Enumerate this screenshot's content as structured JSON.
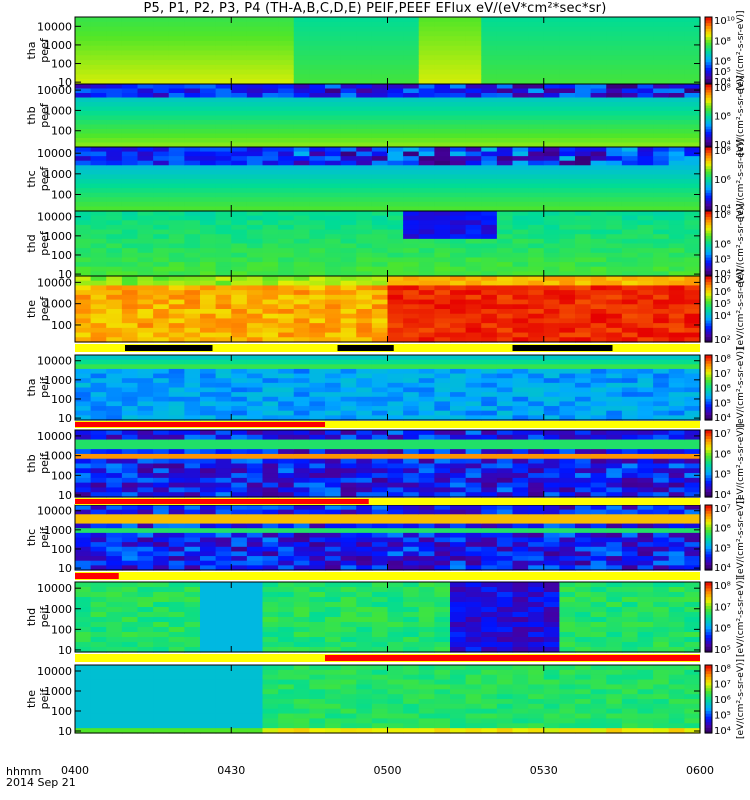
{
  "title": "P5, P1, P2, P3, P4 (TH-A,B,C,D,E) PEIF,PEEF EFlux eV/(eV*cm²*sec*sr)",
  "footer": {
    "axis_label": "hhmm",
    "date": "2014 Sep 21"
  },
  "chart_data": {
    "type": "heatmap",
    "time_range": [
      "0400",
      "0600"
    ],
    "x_tick_labels": [
      "0400",
      "0430",
      "0500",
      "0530",
      "0600"
    ],
    "x_tick_hours": [
      0,
      0.5,
      1.0,
      1.5,
      2.0
    ],
    "y_tick_labels": [
      "10",
      "100",
      "1000",
      "10000"
    ],
    "y_ticks_log": [
      1,
      2,
      3,
      4
    ],
    "colorbar_label": "[eV/(cm²-s-sr-eV)]",
    "panels": [
      {
        "id": "tha-peef",
        "label_top": "tha",
        "label_bottom": "peef",
        "ylog_range": [
          0.9,
          4.5
        ],
        "cb_ticks": [
          "10⁴",
          "10⁵",
          "10⁶",
          "10⁸",
          "10¹⁰"
        ],
        "cb_log": [
          4,
          5,
          6,
          8,
          10
        ]
      },
      {
        "id": "thb-peef",
        "label_top": "thb",
        "label_bottom": "peef",
        "ylog_range": [
          1.2,
          4.3
        ],
        "cb_ticks": [
          "10⁴",
          "10⁶",
          "10⁸"
        ],
        "cb_log": [
          4,
          6,
          8
        ]
      },
      {
        "id": "thc-peef",
        "label_top": "thc",
        "label_bottom": "peef",
        "ylog_range": [
          1.2,
          4.3
        ],
        "cb_ticks": [
          "10⁴",
          "10⁶",
          "10⁸"
        ],
        "cb_log": [
          4,
          6,
          8
        ]
      },
      {
        "id": "thd-peef",
        "label_top": "thd",
        "label_bottom": "peef",
        "ylog_range": [
          0.9,
          4.3
        ],
        "cb_ticks": [
          "10⁴",
          "10⁵",
          "10⁶",
          "10⁸"
        ],
        "cb_log": [
          4,
          5,
          6,
          8
        ]
      },
      {
        "id": "the-peef",
        "label_top": "the",
        "label_bottom": "peef",
        "ylog_range": [
          1.2,
          4.3
        ],
        "cb_ticks": [
          "10²",
          "10⁴",
          "10⁵",
          "10⁶",
          "10⁷"
        ],
        "cb_log": [
          2,
          4,
          5,
          6,
          7
        ]
      },
      {
        "id": "tha-peif",
        "label_top": "tha",
        "label_bottom": "peif",
        "ylog_range": [
          0.9,
          4.3
        ],
        "cb_ticks": [
          "10⁴",
          "10⁵",
          "10⁶",
          "10⁷",
          "10⁸"
        ],
        "cb_log": [
          4,
          5,
          6,
          7,
          8
        ]
      },
      {
        "id": "thb-peif",
        "label_top": "thb",
        "label_bottom": "peif",
        "ylog_range": [
          0.9,
          4.3
        ],
        "cb_ticks": [
          "10⁴",
          "10⁵",
          "10⁶",
          "10⁷"
        ],
        "cb_log": [
          4,
          5,
          6,
          7
        ]
      },
      {
        "id": "thc-peif",
        "label_top": "thc",
        "label_bottom": "peif",
        "ylog_range": [
          0.9,
          4.3
        ],
        "cb_ticks": [
          "10⁴",
          "10⁵",
          "10⁶",
          "10⁷"
        ],
        "cb_log": [
          4,
          5,
          6,
          7
        ]
      },
      {
        "id": "thd-peif",
        "label_top": "thd",
        "label_bottom": "peif",
        "ylog_range": [
          0.9,
          4.3
        ],
        "cb_ticks": [
          "10⁵",
          "10⁶",
          "10⁷",
          "10⁸"
        ],
        "cb_log": [
          5,
          6,
          7,
          8
        ]
      },
      {
        "id": "the-peif",
        "label_top": "the",
        "label_bottom": "peif",
        "ylog_range": [
          0.9,
          4.3
        ],
        "cb_ticks": [
          "10⁴",
          "10⁵",
          "10⁶",
          "10⁷",
          "10⁸"
        ],
        "cb_log": [
          4,
          5,
          6,
          7,
          8
        ]
      }
    ]
  }
}
